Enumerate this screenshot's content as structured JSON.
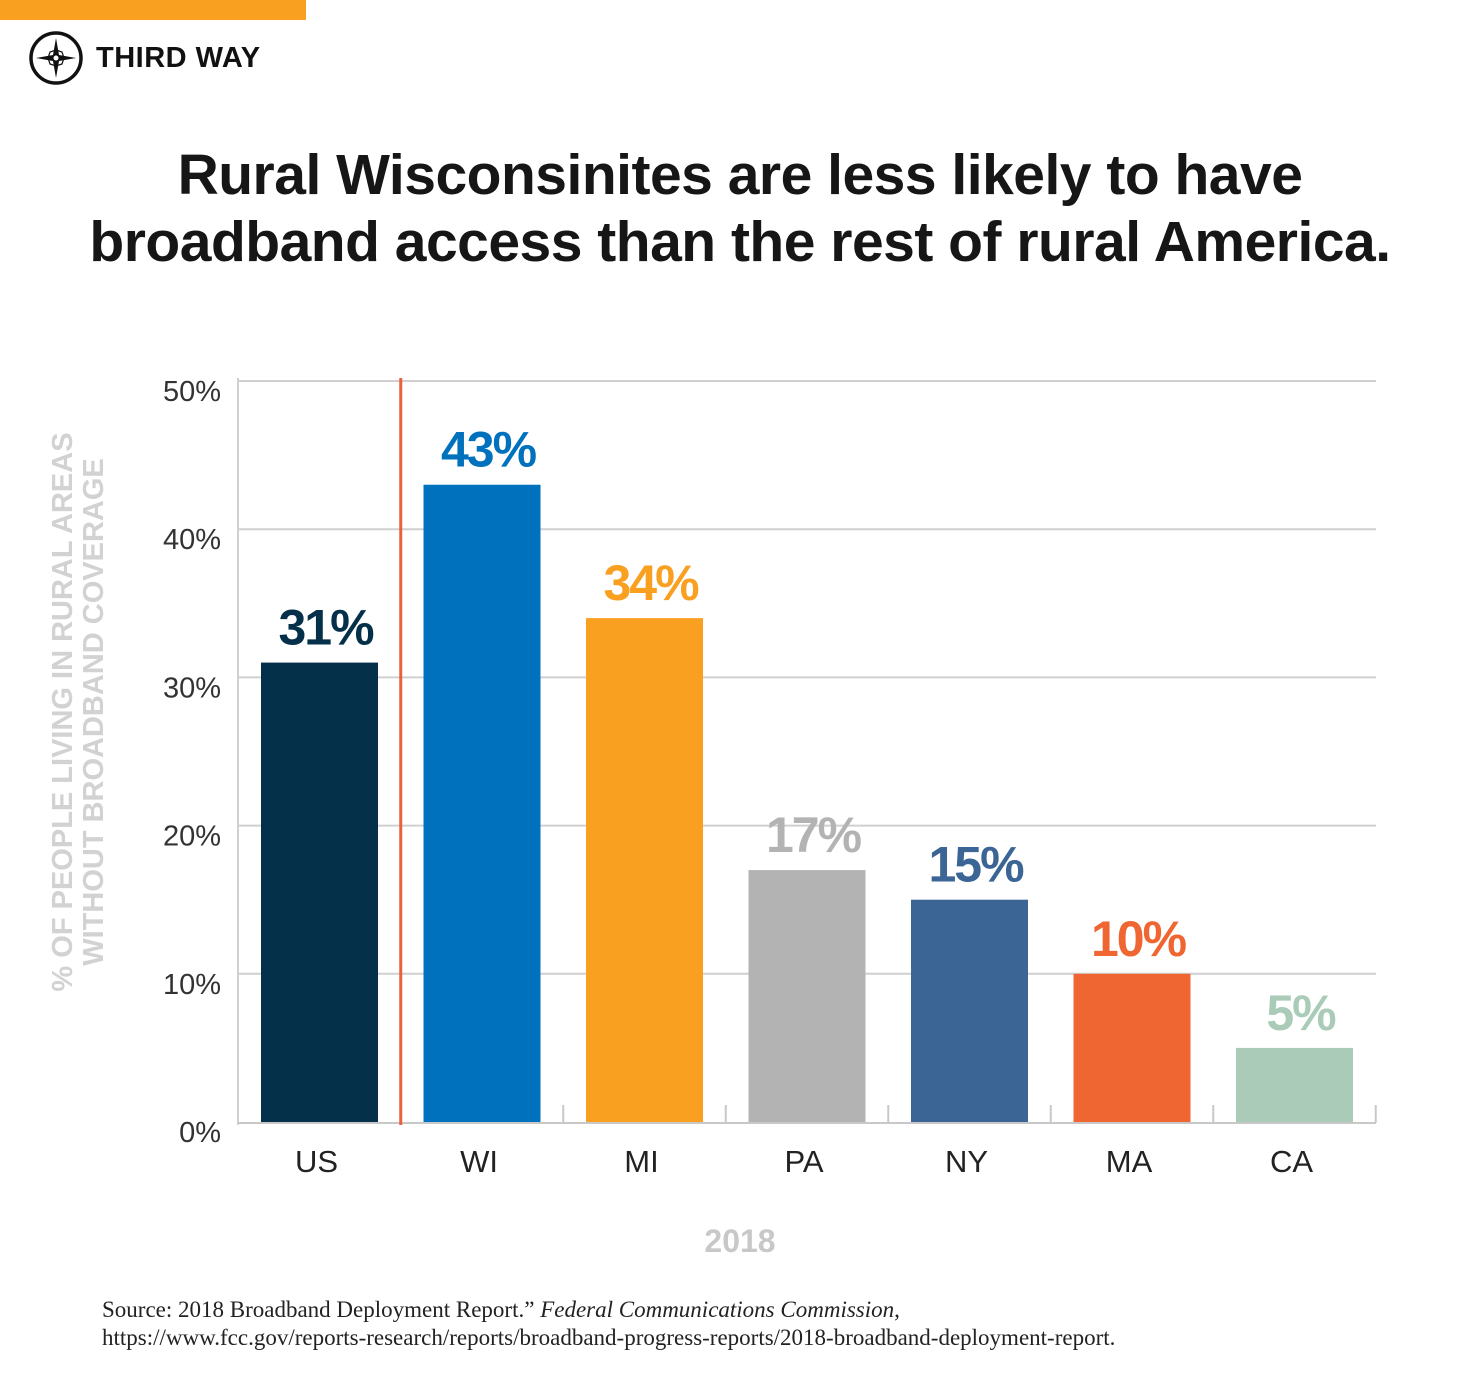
{
  "brand": {
    "name": "THIRD WAY",
    "accent": "#f9a021"
  },
  "title_line1": "Rural Wisconsinites are less likely to have",
  "title_line2": "broadband access than the rest of rural America.",
  "source": {
    "prefix": "Source: 2018 Broadband Deployment Report.” ",
    "publisher": "Federal Communications Commission",
    "suffix": ",",
    "url": "https://www.fcc.gov/reports-research/reports/broadband-progress-reports/2018-broadband-deployment-report."
  },
  "chart_data": {
    "type": "bar",
    "title": "",
    "xlabel": "2018",
    "ylabel_line1": "% OF PEOPLE LIVING IN RURAL AREAS",
    "ylabel_line2": "WITHOUT BROADBAND COVERAGE",
    "categories": [
      "US",
      "WI",
      "MI",
      "PA",
      "NY",
      "MA",
      "CA"
    ],
    "values": [
      31,
      43,
      34,
      17,
      15,
      10,
      5
    ],
    "data_labels": [
      "31%",
      "43%",
      "34%",
      "17%",
      "15%",
      "10%",
      "5%"
    ],
    "colors": [
      "#05304a",
      "#0071bc",
      "#f9a021",
      "#b3b3b3",
      "#3b6595",
      "#ef6632",
      "#a9cbb7"
    ],
    "ylim": [
      0,
      50
    ],
    "yticks": [
      0,
      10,
      20,
      30,
      40,
      50
    ],
    "ytick_labels": [
      "0%",
      "10%",
      "20%",
      "30%",
      "40%",
      "50%"
    ],
    "grid": true,
    "separator_after_category": "US",
    "separator_color": "#e8603c"
  }
}
